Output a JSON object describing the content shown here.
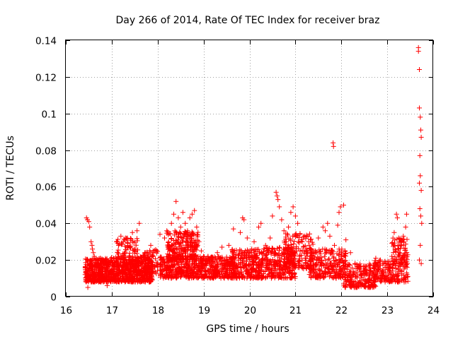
{
  "chart_data": {
    "type": "scatter",
    "title": "Day 266 of 2014, Rate Of TEC Index for receiver braz",
    "xlabel": "GPS time / hours",
    "ylabel": "ROTI / TECUs",
    "xlim": [
      16,
      24
    ],
    "ylim": [
      0,
      0.14
    ],
    "xticks": [
      "16",
      "17",
      "18",
      "19",
      "20",
      "21",
      "22",
      "23",
      "24"
    ],
    "yticks": [
      "0",
      "0.02",
      "0.04",
      "0.06",
      "0.08",
      "0.1",
      "0.12",
      "0.14"
    ],
    "grid": true,
    "marker": "+",
    "color": "#ff0000",
    "series": [
      {
        "name": "ROTI",
        "points": [
          [
            16.45,
            0.043
          ],
          [
            16.47,
            0.042
          ],
          [
            16.5,
            0.041
          ],
          [
            16.52,
            0.038
          ],
          [
            16.48,
            0.005
          ],
          [
            16.55,
            0.03
          ],
          [
            16.57,
            0.028
          ],
          [
            16.58,
            0.026
          ],
          [
            16.6,
            0.024
          ],
          [
            16.62,
            0.022
          ],
          [
            16.75,
            0.021
          ],
          [
            16.82,
            0.02
          ],
          [
            16.88,
            0.019
          ],
          [
            16.9,
            0.006
          ],
          [
            17.2,
            0.033
          ],
          [
            17.25,
            0.03
          ],
          [
            17.3,
            0.032
          ],
          [
            17.35,
            0.028
          ],
          [
            17.45,
            0.035
          ],
          [
            17.55,
            0.036
          ],
          [
            17.6,
            0.04
          ],
          [
            17.72,
            0.024
          ],
          [
            17.85,
            0.028
          ],
          [
            17.9,
            0.025
          ],
          [
            18.05,
            0.034
          ],
          [
            18.15,
            0.032
          ],
          [
            18.2,
            0.036
          ],
          [
            18.3,
            0.04
          ],
          [
            18.35,
            0.045
          ],
          [
            18.4,
            0.052
          ],
          [
            18.45,
            0.043
          ],
          [
            18.5,
            0.038
          ],
          [
            18.55,
            0.046
          ],
          [
            18.6,
            0.04
          ],
          [
            18.65,
            0.036
          ],
          [
            18.7,
            0.043
          ],
          [
            18.75,
            0.045
          ],
          [
            18.8,
            0.047
          ],
          [
            18.85,
            0.038
          ],
          [
            18.9,
            0.03
          ],
          [
            18.95,
            0.025
          ],
          [
            19.0,
            0.022
          ],
          [
            19.05,
            0.02
          ],
          [
            19.3,
            0.024
          ],
          [
            19.4,
            0.027
          ],
          [
            19.55,
            0.028
          ],
          [
            19.65,
            0.037
          ],
          [
            19.8,
            0.035
          ],
          [
            19.85,
            0.043
          ],
          [
            19.88,
            0.042
          ],
          [
            19.95,
            0.032
          ],
          [
            20.05,
            0.026
          ],
          [
            20.1,
            0.03
          ],
          [
            20.2,
            0.038
          ],
          [
            20.25,
            0.04
          ],
          [
            20.35,
            0.028
          ],
          [
            20.45,
            0.032
          ],
          [
            20.5,
            0.044
          ],
          [
            20.58,
            0.057
          ],
          [
            20.6,
            0.055
          ],
          [
            20.62,
            0.053
          ],
          [
            20.65,
            0.049
          ],
          [
            20.7,
            0.042
          ],
          [
            20.75,
            0.036
          ],
          [
            20.8,
            0.03
          ],
          [
            20.85,
            0.038
          ],
          [
            20.9,
            0.046
          ],
          [
            20.95,
            0.049
          ],
          [
            21.0,
            0.044
          ],
          [
            21.05,
            0.04
          ],
          [
            21.1,
            0.034
          ],
          [
            21.15,
            0.03
          ],
          [
            21.25,
            0.026
          ],
          [
            21.3,
            0.028
          ],
          [
            21.4,
            0.022
          ],
          [
            21.5,
            0.032
          ],
          [
            21.6,
            0.038
          ],
          [
            21.65,
            0.036
          ],
          [
            21.7,
            0.04
          ],
          [
            21.75,
            0.033
          ],
          [
            21.82,
            0.084
          ],
          [
            21.83,
            0.082
          ],
          [
            21.85,
            0.028
          ],
          [
            21.92,
            0.039
          ],
          [
            21.95,
            0.046
          ],
          [
            21.98,
            0.049
          ],
          [
            22.05,
            0.05
          ],
          [
            22.1,
            0.031
          ],
          [
            22.2,
            0.024
          ],
          [
            22.3,
            0.018
          ],
          [
            22.4,
            0.015
          ],
          [
            22.55,
            0.012
          ],
          [
            22.6,
            0.006
          ],
          [
            22.65,
            0.009
          ],
          [
            22.75,
            0.021
          ],
          [
            22.85,
            0.02
          ],
          [
            22.95,
            0.016
          ],
          [
            23.05,
            0.014
          ],
          [
            23.1,
            0.022
          ],
          [
            23.15,
            0.035
          ],
          [
            23.2,
            0.045
          ],
          [
            23.22,
            0.043
          ],
          [
            23.25,
            0.032
          ],
          [
            23.3,
            0.028
          ],
          [
            23.35,
            0.033
          ],
          [
            23.4,
            0.038
          ],
          [
            23.42,
            0.045
          ],
          [
            23.68,
            0.136
          ],
          [
            23.68,
            0.134
          ],
          [
            23.7,
            0.124
          ],
          [
            23.7,
            0.103
          ],
          [
            23.72,
            0.098
          ],
          [
            23.73,
            0.091
          ],
          [
            23.74,
            0.087
          ],
          [
            23.71,
            0.077
          ],
          [
            23.72,
            0.066
          ],
          [
            23.7,
            0.062
          ],
          [
            23.74,
            0.058
          ],
          [
            23.71,
            0.048
          ],
          [
            23.73,
            0.044
          ],
          [
            23.75,
            0.04
          ],
          [
            23.7,
            0.02
          ],
          [
            23.72,
            0.028
          ],
          [
            23.74,
            0.018
          ]
        ],
        "bands": [
          {
            "x": [
              16.42,
              16.98
            ],
            "y": [
              0.008,
              0.021
            ],
            "n": 380
          },
          {
            "x": [
              16.98,
              17.9
            ],
            "y": [
              0.008,
              0.022
            ],
            "n": 480
          },
          {
            "x": [
              17.1,
              17.6
            ],
            "y": [
              0.012,
              0.032
            ],
            "n": 140
          },
          {
            "x": [
              17.7,
              18.0
            ],
            "y": [
              0.01,
              0.026
            ],
            "n": 70
          },
          {
            "x": [
              18.05,
              18.95
            ],
            "y": [
              0.01,
              0.022
            ],
            "n": 330
          },
          {
            "x": [
              18.2,
              18.9
            ],
            "y": [
              0.02,
              0.036
            ],
            "n": 240
          },
          {
            "x": [
              18.95,
              19.7
            ],
            "y": [
              0.01,
              0.022
            ],
            "n": 300
          },
          {
            "x": [
              19.6,
              20.3
            ],
            "y": [
              0.01,
              0.026
            ],
            "n": 300
          },
          {
            "x": [
              20.3,
              21.0
            ],
            "y": [
              0.01,
              0.027
            ],
            "n": 260
          },
          {
            "x": [
              20.75,
              21.4
            ],
            "y": [
              0.015,
              0.035
            ],
            "n": 170
          },
          {
            "x": [
              21.3,
              22.1
            ],
            "y": [
              0.01,
              0.026
            ],
            "n": 240
          },
          {
            "x": [
              22.05,
              22.75
            ],
            "y": [
              0.005,
              0.018
            ],
            "n": 200
          },
          {
            "x": [
              22.7,
              23.45
            ],
            "y": [
              0.008,
              0.02
            ],
            "n": 200
          },
          {
            "x": [
              23.1,
              23.45
            ],
            "y": [
              0.018,
              0.032
            ],
            "n": 80
          }
        ]
      }
    ]
  }
}
